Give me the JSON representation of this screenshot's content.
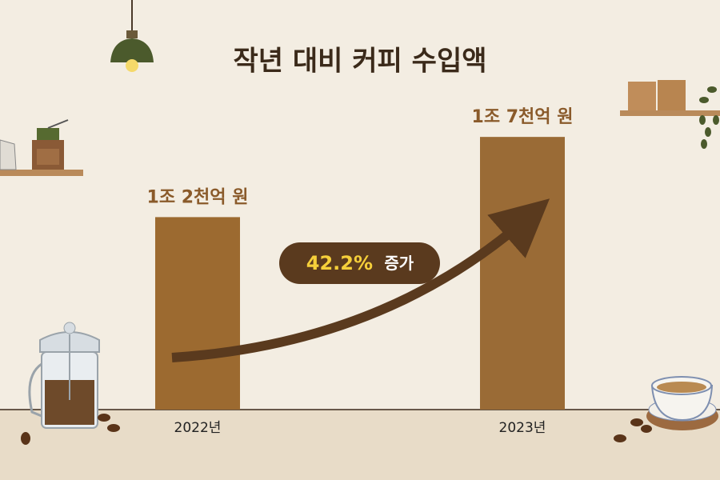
{
  "chart_data": {
    "type": "bar",
    "title": "작년 대비 커피 수입액",
    "categories": [
      "2022년",
      "2023년"
    ],
    "values": [
      12000,
      17000
    ],
    "value_labels": [
      "1조 2천억 원",
      "1조 7천억 원"
    ],
    "colors": [
      "#9c6a30",
      "#9a6b36"
    ],
    "ylim": [
      0,
      20000
    ],
    "annotation": {
      "highlight": "42.2%",
      "text": "증가"
    }
  }
}
